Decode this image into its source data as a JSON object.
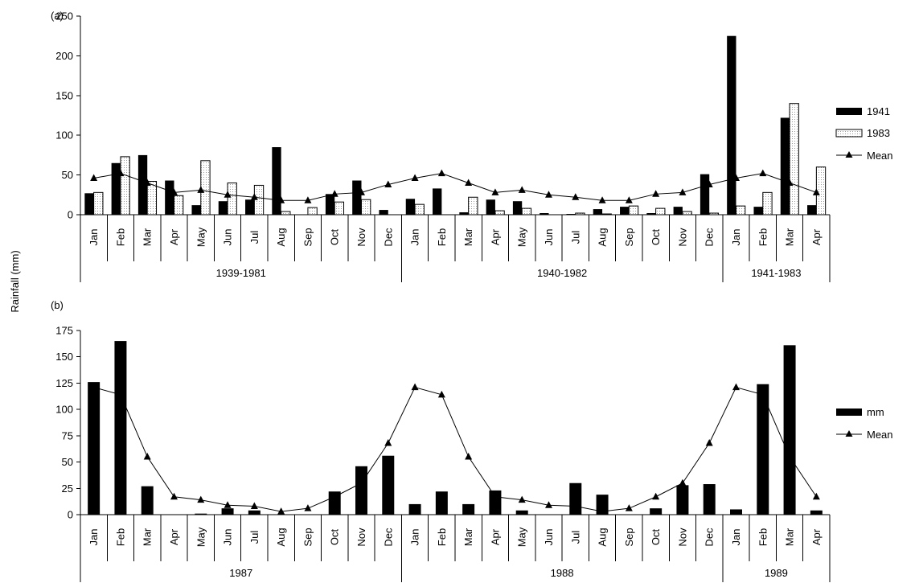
{
  "figure": {
    "ylabel": "Rainfall (mm)"
  },
  "chart_data": [
    {
      "type": "bar",
      "panel_label": "(a)",
      "title": "",
      "xlabel": "",
      "ylabel": "Rainfall (mm)",
      "ylim": [
        0,
        250
      ],
      "yticks": [
        0,
        50,
        100,
        150,
        200,
        250
      ],
      "categories": [
        "Jan",
        "Feb",
        "Mar",
        "Apr",
        "May",
        "Jun",
        "Jul",
        "Aug",
        "Sep",
        "Oct",
        "Nov",
        "Dec",
        "Jan",
        "Feb",
        "Mar",
        "Apr",
        "May",
        "Jun",
        "Jul",
        "Aug",
        "Sep",
        "Oct",
        "Nov",
        "Dec",
        "Jan",
        "Feb",
        "Mar",
        "Apr"
      ],
      "groups": [
        {
          "label": "1939-1981",
          "count": 12
        },
        {
          "label": "1940-1982",
          "count": 12
        },
        {
          "label": "1941-1983",
          "count": 4
        }
      ],
      "series": [
        {
          "name": "1941",
          "kind": "bar",
          "fill": "#000000",
          "values": [
            27,
            65,
            75,
            43,
            12,
            17,
            19,
            85,
            0,
            26,
            43,
            6,
            20,
            33,
            3,
            19,
            17,
            2,
            1,
            7,
            10,
            2,
            10,
            51,
            225,
            10,
            122,
            12
          ]
        },
        {
          "name": "1983",
          "kind": "bar",
          "fill": "#ffffff",
          "pattern": "dotted",
          "values": [
            28,
            73,
            42,
            24,
            68,
            40,
            37,
            4,
            9,
            16,
            19,
            0,
            13,
            0,
            22,
            5,
            8,
            0,
            2,
            1,
            11,
            8,
            4,
            2,
            11,
            28,
            140,
            60
          ]
        },
        {
          "name": "Mean",
          "kind": "line",
          "marker": "triangle",
          "values": [
            46,
            52,
            40,
            28,
            31,
            25,
            22,
            18,
            18,
            26,
            28,
            38,
            46,
            52,
            40,
            28,
            31,
            25,
            22,
            18,
            18,
            26,
            28,
            38,
            46,
            52,
            40,
            28
          ]
        }
      ],
      "legend": "right"
    },
    {
      "type": "bar",
      "panel_label": "(b)",
      "title": "",
      "xlabel": "",
      "ylabel": "Rainfall (mm)",
      "ylim": [
        0,
        175
      ],
      "yticks": [
        0,
        25,
        50,
        75,
        100,
        125,
        150,
        175
      ],
      "categories": [
        "Jan",
        "Feb",
        "Mar",
        "Apr",
        "May",
        "Jun",
        "Jul",
        "Aug",
        "Sep",
        "Oct",
        "Nov",
        "Dec",
        "Jan",
        "Feb",
        "Mar",
        "Apr",
        "May",
        "Jun",
        "Jul",
        "Aug",
        "Sep",
        "Oct",
        "Nov",
        "Dec",
        "Jan",
        "Feb",
        "Mar",
        "Apr"
      ],
      "groups": [
        {
          "label": "1987",
          "count": 12
        },
        {
          "label": "1988",
          "count": 12
        },
        {
          "label": "1989",
          "count": 4
        }
      ],
      "series": [
        {
          "name": "mm",
          "kind": "bar",
          "fill": "#000000",
          "values": [
            126,
            165,
            27,
            0,
            1,
            6,
            4,
            0,
            0,
            22,
            46,
            56,
            10,
            22,
            10,
            23,
            4,
            0,
            30,
            19,
            0,
            6,
            28,
            29,
            5,
            124,
            161,
            4
          ]
        },
        {
          "name": "Mean",
          "kind": "line",
          "marker": "triangle",
          "values": [
            121,
            114,
            55,
            17,
            14,
            9,
            8,
            3,
            6,
            17,
            30,
            68,
            121,
            114,
            55,
            17,
            14,
            9,
            8,
            3,
            6,
            17,
            30,
            68,
            121,
            114,
            55,
            17
          ]
        }
      ],
      "legend": "right"
    }
  ]
}
